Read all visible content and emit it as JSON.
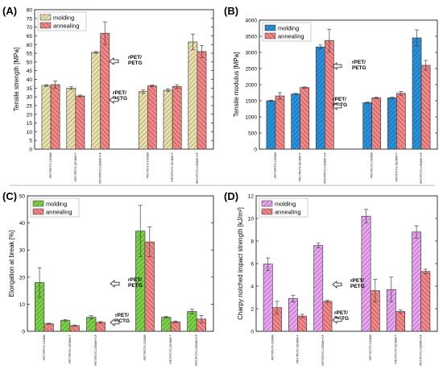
{
  "chart_data": [
    {
      "panel_label": "(A)",
      "type": "bar",
      "ylabel": "Tensile strength [MPa]",
      "ylim": [
        0,
        80
      ],
      "yticks": [
        0,
        5,
        10,
        15,
        20,
        25,
        30,
        35,
        40,
        45,
        50,
        55,
        60,
        65,
        70,
        75,
        80
      ],
      "categories": [
        "rPET/PETG-CE0M0",
        "rPET/PETG-CE0M0+T",
        "rPET/PETG-CE0M0+CF",
        "rPET/PCTG-CE0M0",
        "rPET/PCTG-CE0M0+T",
        "rPET/PCTG-CE0M0+CF"
      ],
      "series": [
        {
          "name": "molding",
          "values": [
            36.5,
            35.0,
            55.5,
            33.0,
            33.8,
            61.5
          ],
          "errors": [
            0.5,
            0.8,
            0.5,
            1.0,
            0.8,
            4.5
          ]
        },
        {
          "name": "annealing",
          "values": [
            37.0,
            30.5,
            66.5,
            36.3,
            36.0,
            56.0
          ],
          "errors": [
            2.0,
            0.5,
            6.5,
            0.5,
            1.0,
            3.5
          ]
        }
      ],
      "legend_position": "top-left",
      "annotations": [
        "rPET/\nPETG",
        "rPET/\nPCTG"
      ]
    },
    {
      "panel_label": "(B)",
      "type": "bar",
      "ylabel": "Tensile modulus [MPa]",
      "ylim": [
        0,
        4000
      ],
      "yticks": [
        0,
        500,
        1000,
        1500,
        2000,
        2500,
        3000,
        3500,
        4000
      ],
      "categories": [
        "rPET/PETG-CE0M0",
        "rPET/PETG-CE0M0+T",
        "rPET/PETG-CE0M0+CF",
        "rPET/PCTG-CE0M0",
        "rPET/PCTG-CE0M0+T",
        "rPET/PCTG-CE0M0+CF"
      ],
      "series": [
        {
          "name": "molding",
          "values": [
            1500,
            1710,
            3170,
            1440,
            1590,
            3450
          ],
          "errors": [
            20,
            20,
            60,
            20,
            20,
            250
          ]
        },
        {
          "name": "annealing",
          "values": [
            1650,
            1910,
            3370,
            1590,
            1730,
            2600
          ],
          "errors": [
            100,
            20,
            350,
            20,
            60,
            150
          ]
        }
      ],
      "legend_position": "top-left",
      "annotations": [
        "rPET/\nPETG",
        "rPET/\nPCTG"
      ]
    },
    {
      "panel_label": "(C)",
      "type": "bar",
      "ylabel": "Elongation at break [%]",
      "ylim": [
        0,
        50
      ],
      "yticks": [
        0,
        10,
        20,
        30,
        40,
        50
      ],
      "categories": [
        "rPET/PETG-CE0M0",
        "rPET/PETG-CE0M0+T",
        "rPET/PETG-CE0M0+CF",
        "rPET/PCTG-CE0M0",
        "rPET/PCTG-CE0M0+T",
        "rPET/PCTG-CE0M0+CF"
      ],
      "series": [
        {
          "name": "molding",
          "values": [
            18.0,
            4.0,
            5.2,
            37.0,
            5.2,
            7.3
          ],
          "errors": [
            5.5,
            0.3,
            0.6,
            9.5,
            0.3,
            0.8
          ]
        },
        {
          "name": "annealing",
          "values": [
            2.8,
            2.1,
            3.3,
            33.0,
            3.5,
            4.5
          ],
          "errors": [
            0.2,
            0.2,
            0.3,
            5.5,
            0.3,
            1.3
          ]
        }
      ],
      "legend_position": "top-left",
      "annotations": [
        "rPET/\nPETG",
        "rPET/\nPCTG"
      ]
    },
    {
      "panel_label": "(D)",
      "type": "bar",
      "ylabel": "Charpy notched impact strength [kJ/m²]",
      "ylim": [
        0,
        12
      ],
      "yticks": [
        0,
        2,
        4,
        6,
        8,
        10,
        12
      ],
      "categories": [
        "rPET/PETG-CE0M0",
        "rPET/PETG-CE0M0+T",
        "rPET/PETG-CE0M0+CF",
        "rPET/PCTG-CE0M0",
        "rPET/PCTG-CE0M0+T",
        "rPET/PCTG-CE0M0+CF"
      ],
      "series": [
        {
          "name": "molding",
          "values": [
            5.95,
            2.9,
            7.6,
            10.2,
            3.7,
            8.8
          ],
          "errors": [
            0.55,
            0.3,
            0.2,
            0.6,
            1.1,
            0.55
          ]
        },
        {
          "name": "annealing",
          "values": [
            2.1,
            1.35,
            2.65,
            3.6,
            1.75,
            5.3
          ],
          "errors": [
            0.55,
            0.15,
            0.1,
            1.0,
            0.15,
            0.2
          ]
        }
      ],
      "legend_position": "top-left",
      "annotations": [
        "rPET/\nPETG",
        "rPET/\nPCTG"
      ]
    }
  ],
  "colors": {
    "panel_A": {
      "molding": "#e8e0b0",
      "molding_hatch": "#9a8e55",
      "annealing": "#ef8a8a",
      "annealing_hatch": "#b03a3a"
    },
    "panel_B": {
      "molding": "#2a90d8",
      "molding_hatch": "#0d5e9e",
      "annealing": "#ef8a8a",
      "annealing_hatch": "#b03a3a"
    },
    "panel_C": {
      "molding": "#7cd04a",
      "molding_hatch": "#3f8a1c",
      "annealing": "#ef8a8a",
      "annealing_hatch": "#b03a3a"
    },
    "panel_D": {
      "molding": "#e6a8ec",
      "molding_hatch": "#a448b0",
      "annealing": "#ef8a8a",
      "annealing_hatch": "#b03a3a"
    }
  }
}
